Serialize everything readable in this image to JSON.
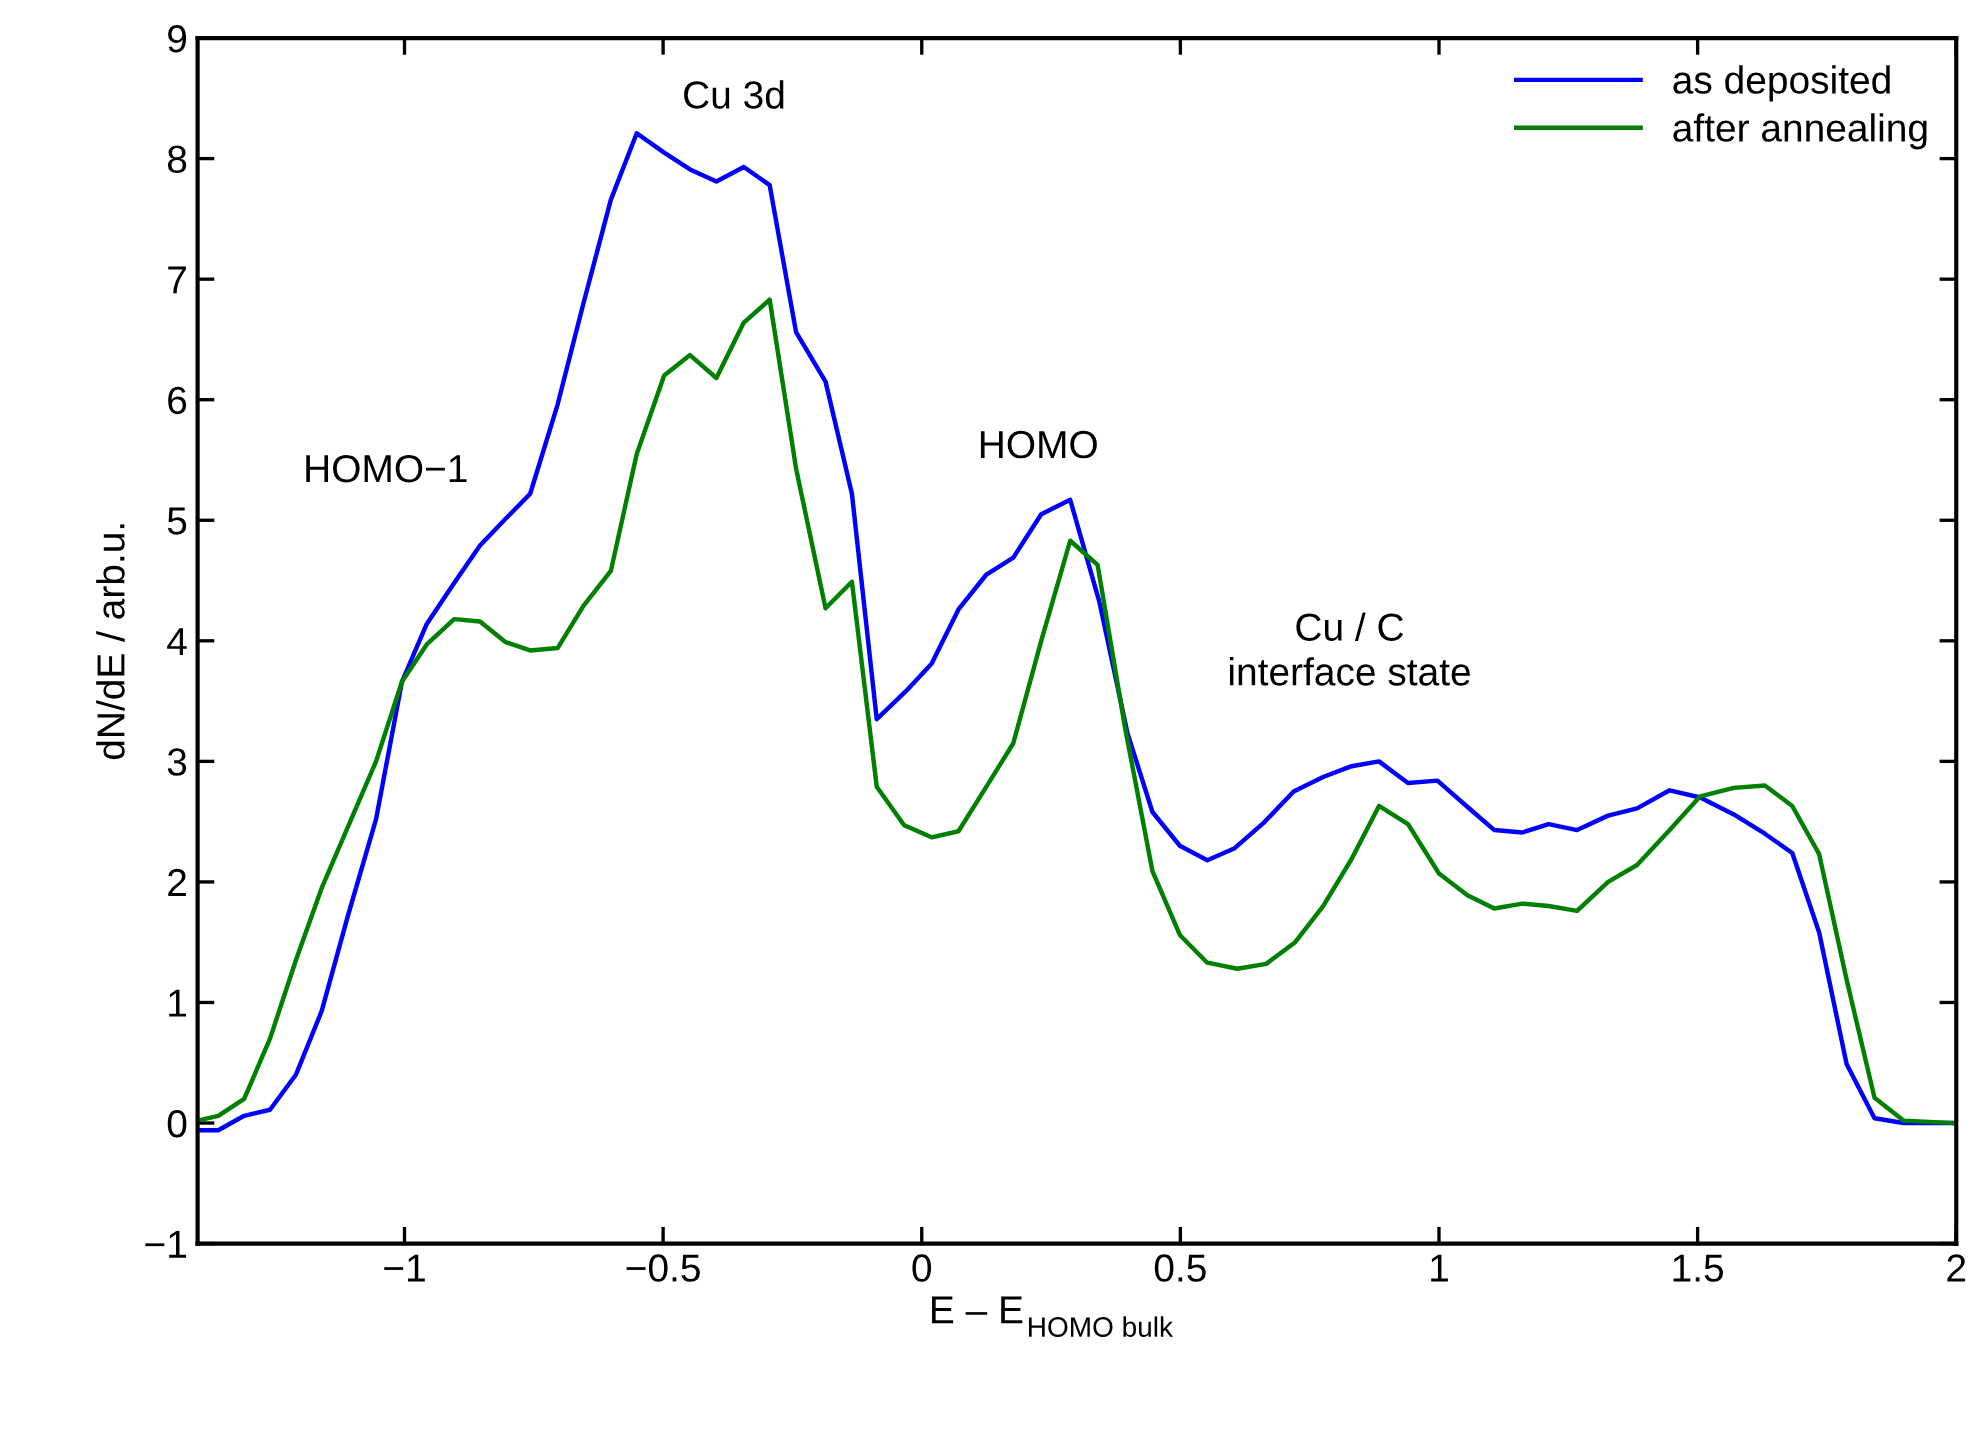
{
  "chart_data": {
    "type": "line",
    "xlabel": "E – E$_{HOMO bulk}$",
    "ylabel": "dN/dE / arb.u.",
    "xlim": [
      -1.4,
      2
    ],
    "ylim": [
      -1,
      9
    ],
    "xticks": [
      {
        "value": -1,
        "label": "−1"
      },
      {
        "value": -0.5,
        "label": "−0.5"
      },
      0,
      0.5,
      1,
      1.5,
      2
    ],
    "yticks": [
      {
        "value": -1,
        "label": "−1"
      },
      0,
      1,
      2,
      3,
      4,
      5,
      6,
      7,
      8,
      9
    ],
    "grid": false,
    "legend": "top right",
    "marker": "none",
    "line_style": "solid",
    "annotations": [
      "HOMO−1",
      "Cu 3d",
      "HOMO",
      "Cu / C\ninterface state"
    ],
    "series": [
      {
        "name": "as deposited",
        "color": "#0000ff",
        "x": [
          -1.4,
          -1.36,
          -1.31,
          -1.26,
          -1.21,
          -1.16,
          -1.11,
          -1.055,
          -1.005,
          -0.957,
          -0.904,
          -0.854,
          -0.805,
          -0.757,
          -0.704,
          -0.654,
          -0.601,
          -0.551,
          -0.498,
          -0.448,
          -0.397,
          -0.344,
          -0.294,
          -0.243,
          -0.186,
          -0.135,
          -0.087,
          -0.031,
          0.019,
          0.071,
          0.125,
          0.177,
          0.231,
          0.287,
          0.343,
          0.398,
          0.446,
          0.499,
          0.552,
          0.605,
          0.661,
          0.719,
          0.776,
          0.831,
          0.884,
          0.94,
          0.997,
          1.053,
          1.107,
          1.161,
          1.212,
          1.267,
          1.327,
          1.383,
          1.446,
          1.505,
          1.57,
          1.63,
          1.683,
          1.735,
          1.788,
          1.842,
          1.898,
          1.994
        ],
        "values": [
          -0.06,
          -0.06,
          0.06,
          0.11,
          0.4,
          0.93,
          1.71,
          2.52,
          3.66,
          4.14,
          4.48,
          4.79,
          5.01,
          5.22,
          5.96,
          6.8,
          7.66,
          8.21,
          8.05,
          7.91,
          7.81,
          7.93,
          7.78,
          6.56,
          6.15,
          5.22,
          3.35,
          3.58,
          3.81,
          4.26,
          4.55,
          4.69,
          5.05,
          5.17,
          4.33,
          3.23,
          2.58,
          2.3,
          2.18,
          2.28,
          2.49,
          2.75,
          2.87,
          2.96,
          3.0,
          2.82,
          2.84,
          2.63,
          2.43,
          2.41,
          2.48,
          2.43,
          2.55,
          2.61,
          2.76,
          2.7,
          2.56,
          2.4,
          2.24,
          1.58,
          0.49,
          0.04,
          0.0,
          0.0
        ]
      },
      {
        "name": "after annealing",
        "color": "#008000",
        "x": [
          -1.4,
          -1.36,
          -1.31,
          -1.26,
          -1.21,
          -1.16,
          -1.11,
          -1.055,
          -1.005,
          -0.957,
          -0.904,
          -0.854,
          -0.805,
          -0.757,
          -0.704,
          -0.654,
          -0.601,
          -0.551,
          -0.498,
          -0.448,
          -0.397,
          -0.344,
          -0.294,
          -0.243,
          -0.186,
          -0.135,
          -0.087,
          -0.034,
          0.019,
          0.071,
          0.125,
          0.177,
          0.231,
          0.287,
          0.34,
          0.393,
          0.446,
          0.499,
          0.552,
          0.61,
          0.666,
          0.722,
          0.776,
          0.831,
          0.884,
          0.94,
          1.0,
          1.055,
          1.107,
          1.161,
          1.212,
          1.267,
          1.327,
          1.383,
          1.446,
          1.505,
          1.57,
          1.63,
          1.683,
          1.735,
          1.788,
          1.842,
          1.898,
          1.994
        ],
        "values": [
          0.02,
          0.06,
          0.2,
          0.7,
          1.35,
          1.95,
          2.45,
          3.0,
          3.66,
          3.97,
          4.18,
          4.16,
          3.99,
          3.92,
          3.94,
          4.29,
          4.58,
          5.55,
          6.2,
          6.37,
          6.18,
          6.64,
          6.83,
          5.43,
          4.27,
          4.49,
          2.79,
          2.47,
          2.37,
          2.42,
          2.79,
          3.15,
          4.0,
          4.83,
          4.63,
          3.28,
          2.09,
          1.56,
          1.33,
          1.28,
          1.32,
          1.5,
          1.8,
          2.19,
          2.63,
          2.48,
          2.07,
          1.89,
          1.78,
          1.82,
          1.8,
          1.76,
          2.0,
          2.14,
          2.43,
          2.71,
          2.78,
          2.8,
          2.63,
          2.23,
          1.19,
          0.21,
          0.02,
          0.0
        ]
      }
    ]
  }
}
